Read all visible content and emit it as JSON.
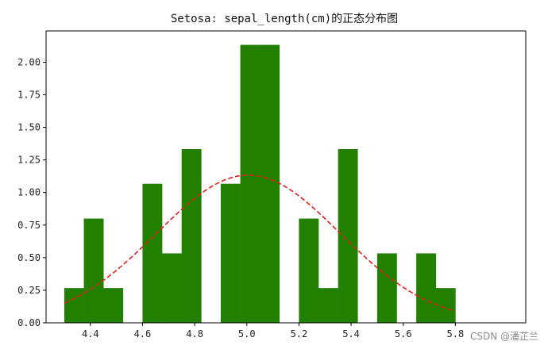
{
  "chart_data": {
    "type": "bar",
    "title": "Setosa: sepal_length(cm)的正态分布图",
    "xlabel": "",
    "ylabel": "",
    "xlim": [
      4.23,
      6.07
    ],
    "ylim": [
      0,
      2.24
    ],
    "x_ticks": [
      {
        "value": 4.4,
        "label": "4.4"
      },
      {
        "value": 4.6,
        "label": "4.6"
      },
      {
        "value": 4.8,
        "label": "4.8"
      },
      {
        "value": 5.0,
        "label": "5.0"
      },
      {
        "value": 5.2,
        "label": "5.2"
      },
      {
        "value": 5.4,
        "label": "5.4"
      },
      {
        "value": 5.6,
        "label": "5.6"
      },
      {
        "value": 5.8,
        "label": "5.8"
      }
    ],
    "y_ticks": [
      {
        "value": 0.0,
        "label": "0.00"
      },
      {
        "value": 0.25,
        "label": "0.25"
      },
      {
        "value": 0.5,
        "label": "0.50"
      },
      {
        "value": 0.75,
        "label": "0.75"
      },
      {
        "value": 1.0,
        "label": "1.00"
      },
      {
        "value": 1.25,
        "label": "1.25"
      },
      {
        "value": 1.5,
        "label": "1.50"
      },
      {
        "value": 1.75,
        "label": "1.75"
      },
      {
        "value": 2.0,
        "label": "2.00"
      }
    ],
    "grid": false,
    "bar_color": "#228000",
    "bars": [
      {
        "x0": 4.3,
        "x1": 4.375,
        "value": 0.267
      },
      {
        "x0": 4.375,
        "x1": 4.45,
        "value": 0.8
      },
      {
        "x0": 4.45,
        "x1": 4.525,
        "value": 0.267
      },
      {
        "x0": 4.525,
        "x1": 4.6,
        "value": 0.0
      },
      {
        "x0": 4.6,
        "x1": 4.675,
        "value": 1.067
      },
      {
        "x0": 4.675,
        "x1": 4.75,
        "value": 0.533
      },
      {
        "x0": 4.75,
        "x1": 4.825,
        "value": 1.333
      },
      {
        "x0": 4.825,
        "x1": 4.9,
        "value": 0.0
      },
      {
        "x0": 4.9,
        "x1": 4.975,
        "value": 1.067
      },
      {
        "x0": 4.975,
        "x1": 5.05,
        "value": 2.133
      },
      {
        "x0": 5.05,
        "x1": 5.125,
        "value": 2.133
      },
      {
        "x0": 5.125,
        "x1": 5.2,
        "value": 0.0
      },
      {
        "x0": 5.2,
        "x1": 5.275,
        "value": 0.8
      },
      {
        "x0": 5.275,
        "x1": 5.35,
        "value": 0.267
      },
      {
        "x0": 5.35,
        "x1": 5.425,
        "value": 1.333
      },
      {
        "x0": 5.425,
        "x1": 5.5,
        "value": 0.0
      },
      {
        "x0": 5.5,
        "x1": 5.575,
        "value": 0.533
      },
      {
        "x0": 5.575,
        "x1": 5.65,
        "value": 0.0
      },
      {
        "x0": 5.65,
        "x1": 5.725,
        "value": 0.533
      },
      {
        "x0": 5.725,
        "x1": 5.8,
        "value": 0.267
      }
    ],
    "curve": {
      "color": "#e02020",
      "style": "dashed",
      "mean": 5.006,
      "std": 0.352,
      "x_range": [
        4.3,
        5.8
      ]
    },
    "watermark": "CSDN @潘芷兰"
  }
}
